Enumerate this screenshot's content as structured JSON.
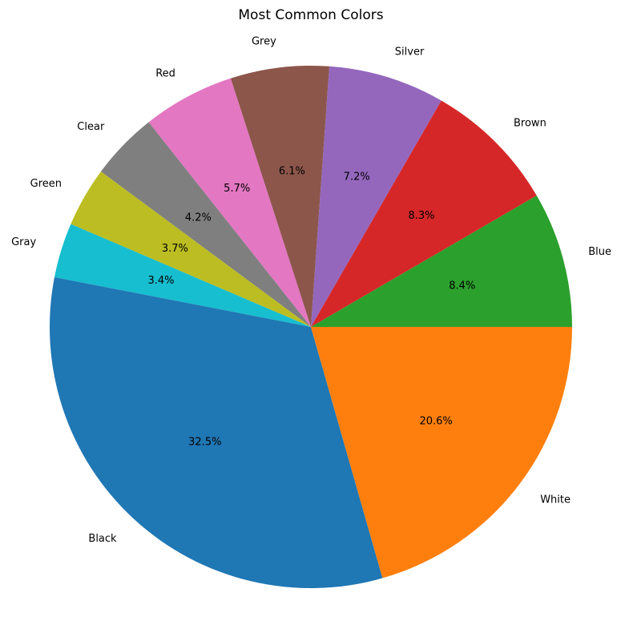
{
  "chart_data": {
    "type": "pie",
    "title": "Most Common Colors",
    "start_angle_deg": 0,
    "direction": "counterclockwise",
    "slices": [
      {
        "label": "Blue",
        "percent": 8.4,
        "value_label": "8.4%",
        "color": "#2ca02c"
      },
      {
        "label": "Brown",
        "percent": 8.3,
        "value_label": "8.3%",
        "color": "#d62728"
      },
      {
        "label": "Silver",
        "percent": 7.2,
        "value_label": "7.2%",
        "color": "#9467bd"
      },
      {
        "label": "Grey",
        "percent": 6.1,
        "value_label": "6.1%",
        "color": "#8c564b"
      },
      {
        "label": "Red",
        "percent": 5.7,
        "value_label": "5.7%",
        "color": "#e377c2"
      },
      {
        "label": "Clear",
        "percent": 4.2,
        "value_label": "4.2%",
        "color": "#7f7f7f"
      },
      {
        "label": "Green",
        "percent": 3.7,
        "value_label": "3.7%",
        "color": "#bcbd22"
      },
      {
        "label": "Gray",
        "percent": 3.4,
        "value_label": "3.4%",
        "color": "#17becf"
      },
      {
        "label": "Black",
        "percent": 32.5,
        "value_label": "32.5%",
        "color": "#1f77b4"
      },
      {
        "label": "White",
        "percent": 20.6,
        "value_label": "20.6%",
        "color": "#ff7f0e"
      }
    ]
  }
}
